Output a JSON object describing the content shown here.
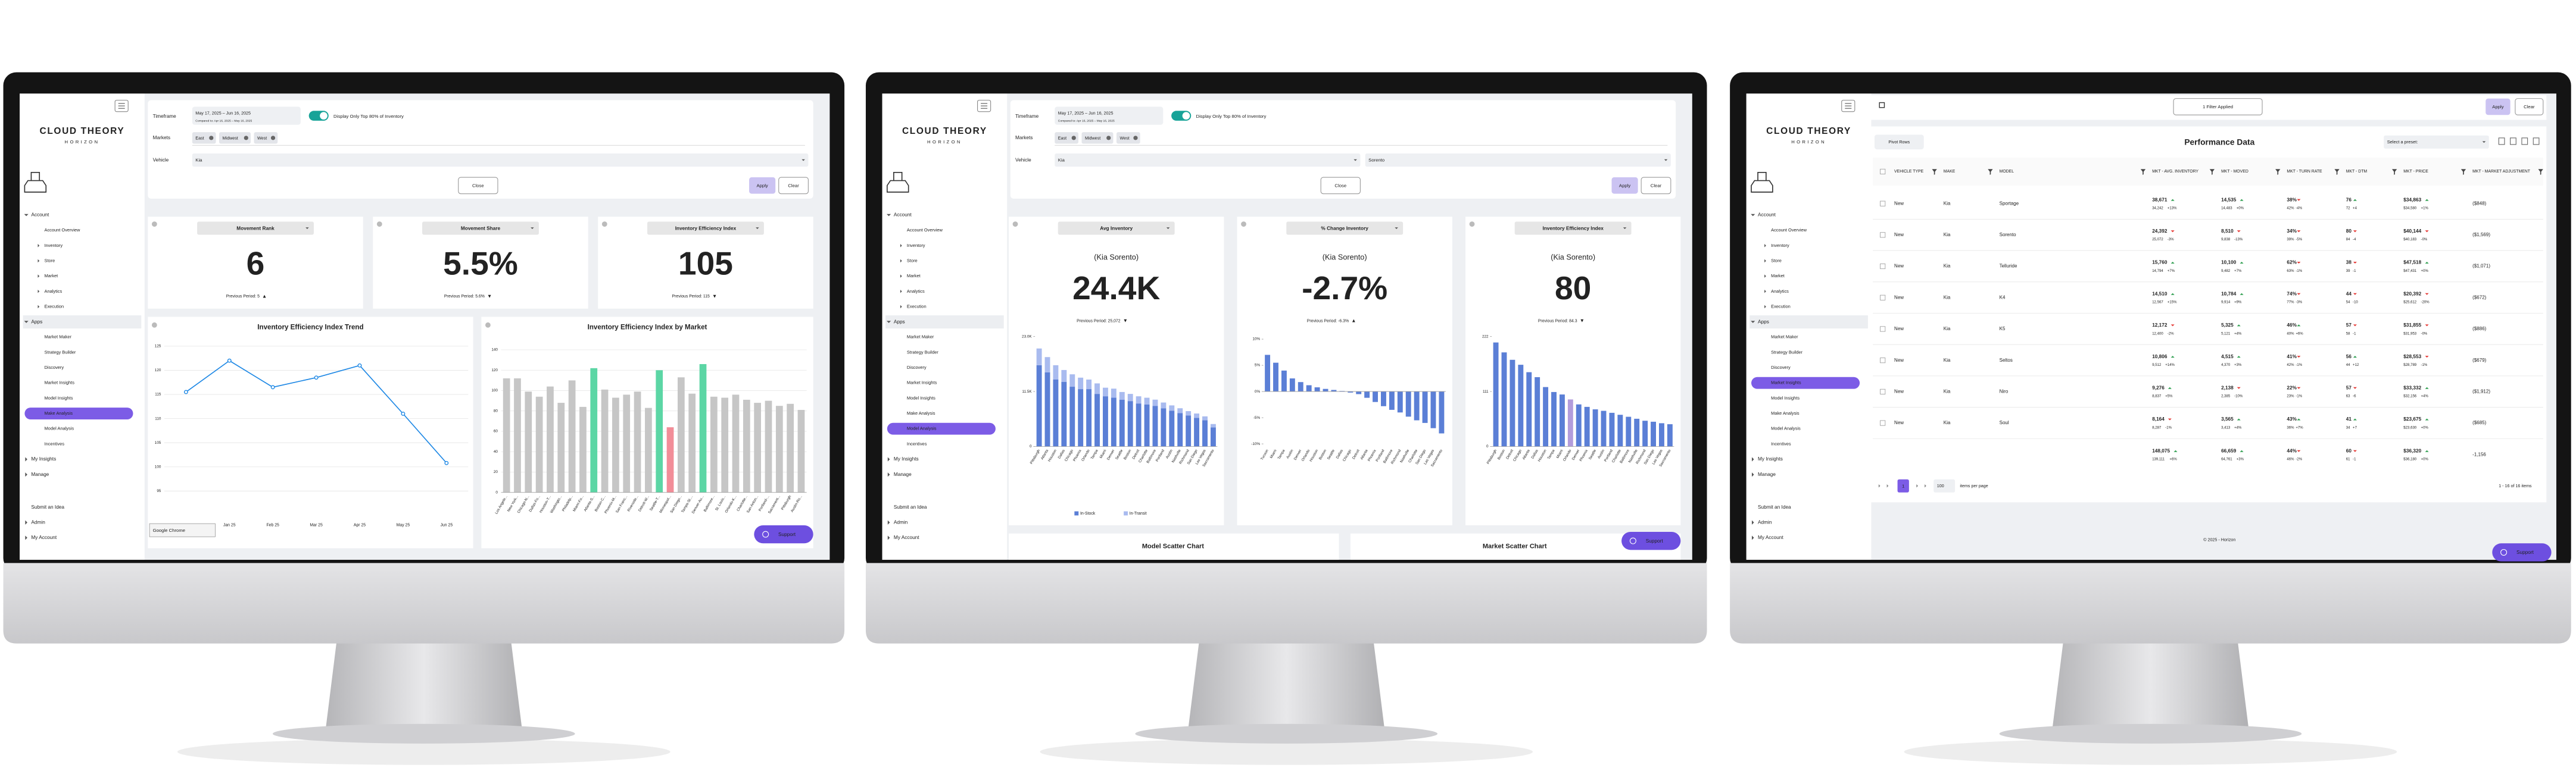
{
  "brand": {
    "name": "CLOUD THEORY",
    "sub": "HORIZON"
  },
  "nav": [
    {
      "label": "Account",
      "children": [
        "Account Overview",
        "Inventory",
        "Store",
        "Market",
        "Analytics",
        "Execution"
      ]
    },
    {
      "label": "Apps",
      "children": [
        "Market Maker",
        "Strategy Builder",
        "Discovery",
        "Market Insights",
        "Model Insights",
        "Make Analysis",
        "Model Analysis",
        "Incentives"
      ]
    },
    {
      "label": "My Insights"
    },
    {
      "label": "Manage"
    }
  ],
  "nav_bottom": [
    "Submit an Idea",
    "Admin",
    "My Account"
  ],
  "screens": [
    {
      "active": "Make Analysis",
      "filters": {
        "timeframe_label": "Timeframe",
        "timeframe": "May 17, 2025 – Jun 16, 2025",
        "compare": "Compared to: Apr 16, 2025 – May 16, 2025",
        "toggle": "Display Only Top 80% of Inventory",
        "markets_label": "Markets",
        "markets": [
          "East",
          "Midwest",
          "West"
        ],
        "vehicle_label": "Vehicle",
        "vehicle": [
          "Kia"
        ],
        "close": "Close",
        "apply": "Apply",
        "clear": "Clear"
      },
      "cards": [
        {
          "title": "Movement Rank",
          "value": "6",
          "previous": "Previous Period: 5",
          "arrow": "▲",
          "arrow_color": "#e53935"
        },
        {
          "title": "Movement Share",
          "value": "5.5%",
          "previous": "Previous Period: 5.6%",
          "arrow": "▼",
          "arrow_color": "#e53935"
        },
        {
          "title": "Inventory Efficiency Index",
          "value": "105",
          "previous": "Previous Period: 115",
          "arrow": "▼",
          "arrow_color": "#e53935"
        }
      ],
      "charts": [
        {
          "type": "line",
          "title": "Inventory Efficiency Index Trend",
          "categories": [
            null,
            "Jan 25",
            "Feb 25",
            "Mar 25",
            "Apr 25",
            "May 25",
            "Jun 25"
          ],
          "values": [
            115.5,
            122,
            116.5,
            118.5,
            121,
            111,
            100.8
          ],
          "color": "#1e88e5",
          "ylim": [
            93,
            127
          ],
          "yticks": [
            95,
            100,
            105,
            110,
            115,
            120,
            125
          ],
          "grid": true
        },
        {
          "type": "bar",
          "title": "Inventory Efficiency Index by Market",
          "categories": [
            "Los Angele...",
            "New York...",
            "Chicago-N...",
            "Dallas-Fo...",
            "Houston-T...",
            "Washingto...",
            "Philadelp...",
            "Miami-Fo...",
            "Atlanta-S...",
            "Boston-C...",
            "Phoenix-M...",
            "San Franc...",
            "Riverside...",
            "Detroit-W...",
            "Seattle-T...",
            "Minneapol...",
            "San Diego...",
            "Tampa-St....",
            "Denver-Au...",
            "Baltimore...",
            "St. Louis...",
            "Orlando-K...",
            "Charlotte...",
            "San Anton...",
            "Portland-...",
            "Sacrament...",
            "Pittsburgh",
            "Austin-Ro..."
          ],
          "values": [
            112,
            112,
            99,
            94,
            104,
            88,
            110,
            84,
            122,
            101,
            93,
            96,
            99,
            83,
            120,
            64,
            113,
            97,
            126,
            94,
            93,
            96,
            91,
            88,
            90,
            85,
            87,
            81
          ],
          "colors": [
            "#c6c6c6",
            "#c6c6c6",
            "#c6c6c6",
            "#c6c6c6",
            "#c6c6c6",
            "#c6c6c6",
            "#c6c6c6",
            "#c6c6c6",
            "#5cd6a5",
            "#c6c6c6",
            "#c6c6c6",
            "#c6c6c6",
            "#c6c6c6",
            "#c6c6c6",
            "#5cd6a5",
            "#f28d98",
            "#c6c6c6",
            "#c6c6c6",
            "#5cd6a5",
            "#c6c6c6",
            "#c6c6c6",
            "#c6c6c6",
            "#c6c6c6",
            "#c6c6c6",
            "#c6c6c6",
            "#c6c6c6",
            "#c6c6c6",
            "#c6c6c6"
          ],
          "ylim": [
            0,
            145
          ],
          "yticks": [
            0,
            20,
            40,
            60,
            80,
            100,
            120,
            140
          ],
          "grid": true
        }
      ],
      "tooltip": "Google Chrome",
      "support": "Support"
    },
    {
      "active": "Model Analysis",
      "filters": {
        "timeframe_label": "Timeframe",
        "timeframe": "May 17, 2025 – Jun 16, 2025",
        "compare": "Compared to: Apr 16, 2025 – May 16, 2025",
        "toggle": "Display Only Top 80% of Inventory",
        "markets_label": "Markets",
        "markets": [
          "East",
          "Midwest",
          "West"
        ],
        "vehicle_label": "Vehicle",
        "vehicle": [
          "Kia",
          "Sorento"
        ],
        "close": "Close",
        "apply": "Apply",
        "clear": "Clear"
      },
      "cards": [
        {
          "title": "Avg Inventory",
          "subtitle": "(Kia Sorento)",
          "value": "24.4K",
          "previous": "Previous Period: 25,072",
          "arrow": "▼",
          "arrow_color": "#222",
          "chart": {
            "type": "stacked_bar",
            "categories": [
              "Pittsburgh",
              "Atlanta",
              "Houston",
              "Dallas",
              "Chicago",
              "Phoenix",
              "Orlando",
              "Tampa",
              "Miami",
              "Denver",
              "Seattle",
              "Boston",
              "Detroit",
              "Charlotte",
              "Baltimore",
              "Portland",
              "Austin",
              "Nashville",
              "Richmond",
              "San Diego",
              "Las Vegas",
              "Sacramento"
            ],
            "series": [
              {
                "name": "In-Stock",
                "color": "#5b7fd6",
                "values": [
                  17000,
                  15500,
                  14000,
                  13500,
                  12500,
                  12000,
                  12000,
                  11000,
                  10500,
                  10200,
                  9800,
                  9500,
                  9000,
                  8800,
                  8500,
                  8000,
                  7500,
                  7000,
                  6500,
                  6000,
                  5500,
                  4000
                ]
              },
              {
                "name": "In-Transit",
                "color": "#a9bbef",
                "values": [
                  3500,
                  3200,
                  3000,
                  2500,
                  2600,
                  2400,
                  2000,
                  2200,
                  1800,
                  1900,
                  1600,
                  1500,
                  1500,
                  1400,
                  1300,
                  1200,
                  1100,
                  1000,
                  900,
                  900,
                  800,
                  700
                ]
              }
            ],
            "ylim": [
              0,
              23000
            ],
            "yticks": [
              0,
              {
                "value": 11500,
                "label": "11.5K"
              },
              {
                "value": 23000,
                "label": "23.0K"
              }
            ]
          }
        },
        {
          "title": "% Change Inventory",
          "subtitle": "(Kia Sorento)",
          "value": "-2.7%",
          "previous": "Previous Period: -6.3%",
          "arrow": "▲",
          "arrow_color": "#222",
          "chart": {
            "type": "bar",
            "categories": [
              "Tucson",
              "Miami",
              "Tampa",
              "Austin",
              "Denver",
              "Orlando",
              "Houston",
              "Boston",
              "Seattle",
              "Dallas",
              "Chicago",
              "Detroit",
              "Atlanta",
              "Phoenix",
              "Portland",
              "Baltimore",
              "Richmond",
              "Nashville",
              "Charlotte",
              "San Diego",
              "Las Vegas",
              "Sacramento"
            ],
            "values": [
              7,
              5.5,
              4,
              2.5,
              1.8,
              1.2,
              0.8,
              0.5,
              0.3,
              0.1,
              -0.2,
              -0.5,
              -1.2,
              -2,
              -2.8,
              -3.5,
              -4,
              -4.8,
              -5.5,
              -6,
              -7,
              -8
            ],
            "color": "#5b7fd6",
            "ylim": [
              -10.5,
              10.5
            ],
            "yticks": [
              {
                "value": -10,
                "label": "-10%"
              },
              {
                "value": -5,
                "label": "-5%"
              },
              {
                "value": 0,
                "label": "0%"
              },
              {
                "value": 5,
                "label": "5%"
              },
              {
                "value": 10,
                "label": "10%"
              }
            ]
          }
        },
        {
          "title": "Inventory Efficiency Index",
          "subtitle": "(Kia Sorento)",
          "value": "80",
          "previous": "Previous Period: 84.3",
          "arrow": "▼",
          "arrow_color": "#e53935",
          "chart": {
            "type": "bar",
            "categories": [
              "Pittsburgh",
              "Boston",
              "Detroit",
              "Chicago",
              "Atlanta",
              "Dallas",
              "Houston",
              "Tampa",
              "Miami",
              "Orlando",
              "Denver",
              "Phoenix",
              "Seattle",
              "Austin",
              "Portland",
              "Charlotte",
              "Baltimore",
              "Nashville",
              "Richmond",
              "San Diego",
              "Las Vegas",
              "Sacramento"
            ],
            "values": [
              210,
              190,
              175,
              165,
              150,
              140,
              120,
              110,
              105,
              95,
              85,
              80,
              75,
              72,
              68,
              64,
              60,
              56,
              52,
              50,
              47,
              45
            ],
            "colors": [
              "#5b7fd6",
              "#5b7fd6",
              "#5b7fd6",
              "#5b7fd6",
              "#5b7fd6",
              "#5b7fd6",
              "#5b7fd6",
              "#5b7fd6",
              "#5b7fd6",
              "#b39ddb",
              "#5b7fd6",
              "#5b7fd6",
              "#5b7fd6",
              "#5b7fd6",
              "#5b7fd6",
              "#5b7fd6",
              "#5b7fd6",
              "#5b7fd6",
              "#5b7fd6",
              "#5b7fd6",
              "#5b7fd6",
              "#5b7fd6"
            ],
            "ylim": [
              0,
              222
            ],
            "yticks": [
              0,
              111,
              222
            ]
          }
        }
      ],
      "bottom": [
        "Model Scatter Chart",
        "Market Scatter Chart"
      ],
      "support": "Support"
    },
    {
      "active": "Market Insights",
      "toolbar": {
        "filter": "1 Filter Applied",
        "apply": "Apply",
        "clear": "Clear",
        "pivot": "Pivot Rows",
        "title": "Performance Data",
        "preset": "Select a preset:"
      },
      "table": {
        "columns": [
          "VEHICLE TYPE",
          "MAKE",
          "MODEL",
          "MKT - AVG. INVENTORY",
          "MKT - MOVED",
          "MKT - TURN RATE",
          "MKT - DTM",
          "MKT - PRICE",
          "MKT - MARKET ADJUSTMENT"
        ],
        "rows": [
          [
            "New",
            "Kia",
            "Sportage",
            [
              "38,671",
              "34,242",
              "+13%"
            ],
            [
              "14,535",
              "14,483",
              "+0%"
            ],
            [
              "38%",
              "42%",
              "-4%"
            ],
            [
              "76",
              "72",
              "+4"
            ],
            [
              "$34,863",
              "$34,580",
              "+1%"
            ],
            "($848)"
          ],
          [
            "New",
            "Kia",
            "Sorento",
            [
              "24,392",
              "25,072",
              "-3%"
            ],
            [
              "8,510",
              "9,838",
              "-13%"
            ],
            [
              "34%",
              "39%",
              "-5%"
            ],
            [
              "80",
              "84",
              "-4"
            ],
            [
              "$40,144",
              "$40,183",
              "-0%"
            ],
            "($1,569)"
          ],
          [
            "New",
            "Kia",
            "Telluride",
            [
              "15,760",
              "14,794",
              "+7%"
            ],
            [
              "10,100",
              "9,482",
              "+7%"
            ],
            [
              "62%",
              "63%",
              "-1%"
            ],
            [
              "38",
              "39",
              "-1"
            ],
            [
              "$47,518",
              "$47,431",
              "+0%"
            ],
            "($1,071)"
          ],
          [
            "New",
            "Kia",
            "K4",
            [
              "14,510",
              "12,567",
              "+15%"
            ],
            [
              "10,784",
              "9,914",
              "+9%"
            ],
            [
              "74%",
              "77%",
              "-3%"
            ],
            [
              "44",
              "54",
              "-10"
            ],
            [
              "$20,392",
              "$25,612",
              "-20%"
            ],
            "($672)"
          ],
          [
            "New",
            "Kia",
            "K5",
            [
              "12,172",
              "12,400",
              "-2%"
            ],
            [
              "5,325",
              "5,121",
              "+4%"
            ],
            [
              "46%",
              "40%",
              "+6%"
            ],
            [
              "57",
              "58",
              "-1"
            ],
            [
              "$31,855",
              "$31,953",
              "-0%"
            ],
            "($886)"
          ],
          [
            "New",
            "Kia",
            "Seltos",
            [
              "10,806",
              "9,512",
              "+14%"
            ],
            [
              "4,515",
              "4,370",
              "+3%"
            ],
            [
              "41%",
              "42%",
              "-1%"
            ],
            [
              "56",
              "44",
              "+12"
            ],
            [
              "$28,553",
              "$28,789",
              "-1%"
            ],
            "($679)"
          ],
          [
            "New",
            "Kia",
            "Niro",
            [
              "9,276",
              "8,837",
              "+5%"
            ],
            [
              "2,138",
              "2,385",
              "-10%"
            ],
            [
              "22%",
              "23%",
              "-1%"
            ],
            [
              "57",
              "63",
              "-6"
            ],
            [
              "$33,332",
              "$32,156",
              "+4%"
            ],
            "($1,912)"
          ],
          [
            "New",
            "Kia",
            "Soul",
            [
              "8,164",
              "8,287",
              "-1%"
            ],
            [
              "3,565",
              "3,413",
              "+4%"
            ],
            [
              "43%",
              "36%",
              "+7%"
            ],
            [
              "41",
              "34",
              "+7"
            ],
            [
              "$23,675",
              "$23,630",
              "+0%"
            ],
            "($685)"
          ]
        ],
        "totals": [
          [
            "148,075",
            "139,111",
            "+6%"
          ],
          [
            "66,659",
            "64,761",
            "+3%"
          ],
          [
            "44%",
            "46%",
            "-2%"
          ],
          [
            "60",
            "61",
            "-1"
          ],
          [
            "$36,320",
            "$36,180",
            "+0%"
          ],
          "-1,156"
        ]
      },
      "pagination": {
        "page": "1",
        "size": "100",
        "size_label": "items per page",
        "summary": "1 - 16 of 16 items"
      },
      "footer": "© 2025 - Horizon",
      "support": "Support"
    }
  ]
}
